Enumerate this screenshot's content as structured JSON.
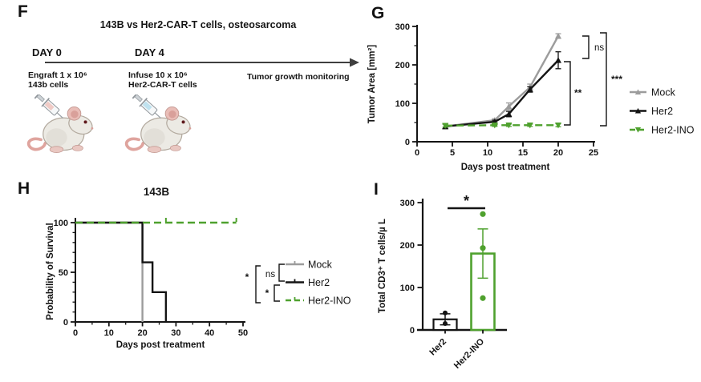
{
  "colors": {
    "mock": "#9c9c9c",
    "her2": "#141414",
    "her2_ino": "#4fa12e",
    "axis": "#141414"
  },
  "panels": {
    "f": {
      "label": "F",
      "title": "143B vs Her2-CAR-T cells, osteosarcoma",
      "day0": {
        "heading": "DAY 0",
        "line1": "Engraft 1 x 10⁶",
        "line2": "143b cells"
      },
      "day4": {
        "heading": "DAY 4",
        "line1": "Infuse 10 x 10⁶",
        "line2": "Her2-CAR-T cells"
      },
      "monitoring": "Tumor growth monitoring"
    },
    "g": {
      "label": "G"
    },
    "h": {
      "label": "H"
    },
    "i": {
      "label": "I"
    }
  },
  "chart_data": [
    {
      "id": "G",
      "type": "line",
      "title": "",
      "xlabel": "Days post treatment",
      "ylabel": "Tumor Area [mm²]",
      "xlim": [
        0,
        25
      ],
      "ylim": [
        0,
        300
      ],
      "xticks": [
        0,
        5,
        10,
        15,
        20,
        25
      ],
      "yticks": [
        0,
        100,
        200,
        300
      ],
      "y_minor_ticks": [
        50,
        150,
        250
      ],
      "grid": false,
      "x": [
        4,
        11,
        13,
        16,
        20
      ],
      "series": [
        {
          "name": "Mock",
          "color_key": "mock",
          "dash": "solid",
          "marker": "triangle-up",
          "values": [
            40,
            56,
            92,
            142,
            275
          ],
          "errors": [
            6,
            4,
            9,
            8,
            6
          ]
        },
        {
          "name": "Her2",
          "color_key": "her2",
          "dash": "solid",
          "marker": "triangle-up",
          "values": [
            40,
            52,
            72,
            136,
            212
          ],
          "errors": [
            6,
            4,
            7,
            7,
            22
          ]
        },
        {
          "name": "Her2-INO",
          "color_key": "her2_ino",
          "dash": "dashed",
          "marker": "triangle-down",
          "values": [
            42,
            43,
            43,
            43,
            43
          ],
          "errors": [
            4,
            3,
            3,
            3,
            4
          ]
        }
      ],
      "legend": {
        "position": "right",
        "items": [
          "Mock",
          "Her2",
          "Her2-INO"
        ]
      },
      "significance": [
        {
          "between": [
            "Mock",
            "Her2"
          ],
          "label": "ns"
        },
        {
          "between": [
            "Her2",
            "Her2-INO"
          ],
          "label": "**"
        },
        {
          "between": [
            "Mock",
            "Her2-INO"
          ],
          "label": "***"
        }
      ]
    },
    {
      "id": "H",
      "type": "line",
      "subtype": "kaplan-meier",
      "title": "143B",
      "xlabel": "Days post treatment",
      "ylabel": "Probability of Survival",
      "xlim": [
        0,
        50
      ],
      "ylim": [
        0,
        100
      ],
      "xticks": [
        0,
        10,
        20,
        30,
        40,
        50
      ],
      "x_minor_ticks": [
        5,
        15,
        25,
        35,
        45
      ],
      "yticks": [
        0,
        50,
        100
      ],
      "y_minor_step": 10,
      "grid": false,
      "series": [
        {
          "name": "Mock",
          "color_key": "mock",
          "dash": "solid",
          "points": [
            [
              0,
              100
            ],
            [
              20,
              100
            ],
            [
              20,
              0
            ]
          ]
        },
        {
          "name": "Her2",
          "color_key": "her2",
          "dash": "solid",
          "points": [
            [
              0,
              100
            ],
            [
              20,
              100
            ],
            [
              20,
              60
            ],
            [
              23,
              60
            ],
            [
              23,
              30
            ],
            [
              27,
              30
            ],
            [
              27,
              0
            ]
          ]
        },
        {
          "name": "Her2-INO",
          "color_key": "her2_ino",
          "dash": "dashed",
          "points": [
            [
              0,
              100
            ],
            [
              48,
              100
            ]
          ],
          "censor_ticks": [
            27,
            48
          ]
        }
      ],
      "legend": {
        "position": "right",
        "items": [
          "Mock",
          "Her2",
          "Her2-INO"
        ]
      },
      "significance": [
        {
          "between": [
            "Mock",
            "Her2"
          ],
          "label": "ns"
        },
        {
          "between": [
            "Her2",
            "Her2-INO"
          ],
          "label": "*"
        },
        {
          "between": [
            "Mock",
            "Her2-INO"
          ],
          "label": "*"
        }
      ]
    },
    {
      "id": "I",
      "type": "bar",
      "title": "",
      "ylabel": "Total CD3⁺ T cells/µ L",
      "ylim": [
        0,
        300
      ],
      "yticks": [
        0,
        100,
        200,
        300
      ],
      "grid": false,
      "categories": [
        "Her2",
        "Her2-INO"
      ],
      "values": [
        25,
        180
      ],
      "errors": [
        13,
        58
      ],
      "bar_color_keys": [
        "her2",
        "her2_ino"
      ],
      "points": [
        [
          40,
          15
        ],
        [
          273,
          193,
          75
        ]
      ],
      "significance": [
        {
          "between": [
            "Her2",
            "Her2-INO"
          ],
          "label": "*"
        }
      ]
    }
  ]
}
